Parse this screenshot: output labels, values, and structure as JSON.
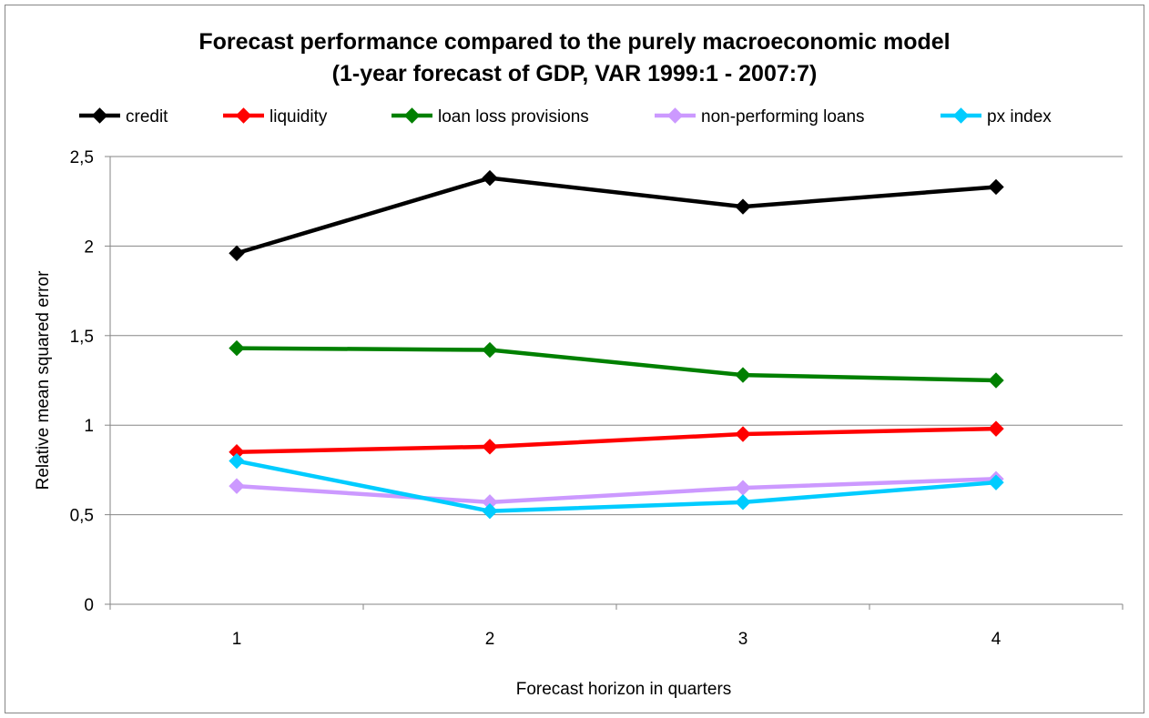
{
  "chart_data": {
    "type": "line",
    "title": "Forecast performance  compared to the purely macroeconomic model",
    "subtitle": "(1-year forecast of GDP, VAR 1999:1 - 2007:7)",
    "xlabel": "Forecast horizon in quarters",
    "ylabel": "Relative mean squared error",
    "categories": [
      "1",
      "2",
      "3",
      "4"
    ],
    "ylim": [
      0,
      2.5
    ],
    "yticks": [
      {
        "value": 0,
        "label": "0"
      },
      {
        "value": 0.5,
        "label": "0,5"
      },
      {
        "value": 1,
        "label": "1"
      },
      {
        "value": 1.5,
        "label": "1,5"
      },
      {
        "value": 2,
        "label": "2"
      },
      {
        "value": 2.5,
        "label": "2,5"
      }
    ],
    "grid": true,
    "legend_position": "top",
    "series": [
      {
        "name": "credit",
        "color": "#000000",
        "values": [
          1.96,
          2.38,
          2.22,
          2.33
        ]
      },
      {
        "name": "liquidity",
        "color": "#ff0000",
        "values": [
          0.85,
          0.88,
          0.95,
          0.98
        ]
      },
      {
        "name": "loan loss provisions",
        "color": "#008000",
        "values": [
          1.43,
          1.42,
          1.28,
          1.25
        ]
      },
      {
        "name": "non-performing loans",
        "color": "#cc99ff",
        "values": [
          0.66,
          0.57,
          0.65,
          0.7
        ]
      },
      {
        "name": "px index",
        "color": "#00ccff",
        "values": [
          0.8,
          0.52,
          0.57,
          0.68
        ]
      }
    ]
  }
}
